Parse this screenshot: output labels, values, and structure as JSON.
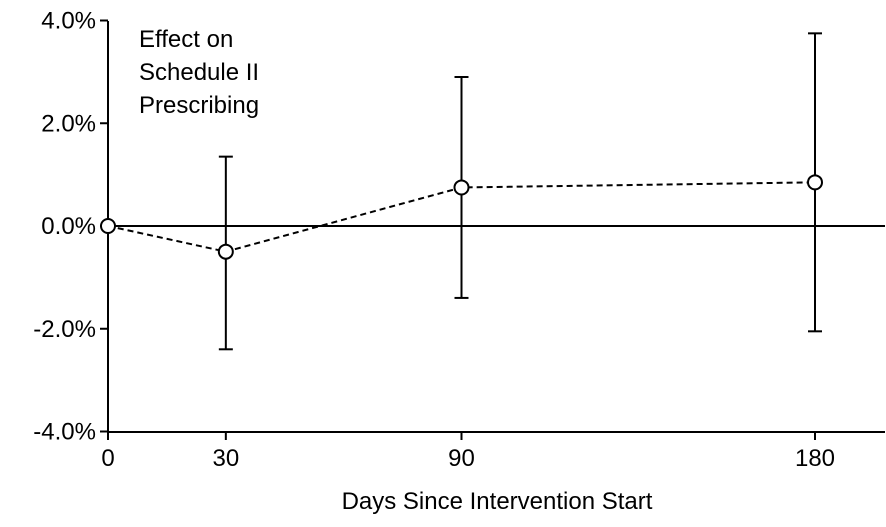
{
  "chart_data": {
    "type": "line",
    "title": "",
    "annotation_lines": [
      "Effect on",
      "Schedule II",
      "Prescribing"
    ],
    "xlabel": "Days Since Intervention Start",
    "ylabel": "",
    "x_ticks": [
      0,
      30,
      90,
      180
    ],
    "x_tick_labels": [
      "0",
      "30",
      "90",
      "180"
    ],
    "xlim": [
      0,
      197
    ],
    "y_ticks": [
      4.0,
      2.0,
      0.0,
      -2.0,
      -4.0
    ],
    "y_tick_labels": [
      "4.0%",
      "2.0%",
      "0.0%",
      "-2.0%",
      "-4.0%"
    ],
    "ylim": [
      -4.0,
      4.0
    ],
    "y_unit": "%",
    "reference_line_y": 0.0,
    "grid": false,
    "series": [
      {
        "points": [
          {
            "x": 0,
            "y": 0.0
          },
          {
            "x": 30,
            "y": -0.5,
            "ci_low": -2.4,
            "ci_high": 1.35
          },
          {
            "x": 90,
            "y": 0.75,
            "ci_low": -1.4,
            "ci_high": 2.9
          },
          {
            "x": 180,
            "y": 0.85,
            "ci_low": -2.05,
            "ci_high": 3.75
          }
        ],
        "line_style": "dashed",
        "marker": "open-circle",
        "color": "#000000"
      }
    ]
  }
}
